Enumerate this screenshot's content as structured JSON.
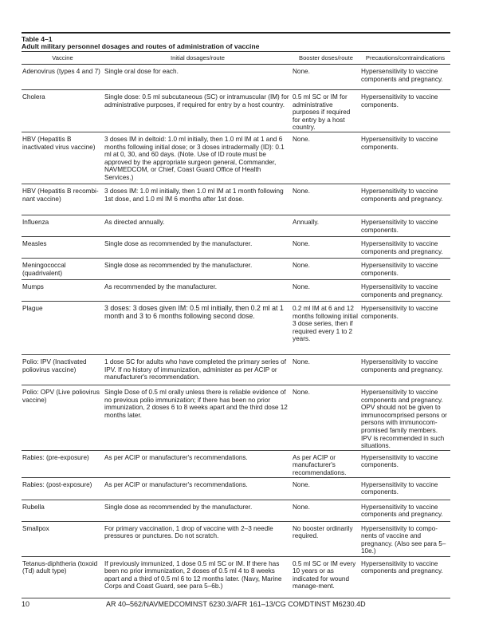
{
  "table": {
    "number": "Table 4–1",
    "title": "Adult military personnel dosages and routes of administration of vaccine",
    "headers": [
      "Vaccine",
      "Initial dosages/route",
      "Booster doses/route",
      "Precautions/contraindications"
    ],
    "rows": [
      [
        "Adenovirus (types 4 and 7)",
        "Single oral dose for each.",
        "None.",
        "Hypersensitivity to vaccine components and pregnancy."
      ],
      [
        "Cholera",
        "Single dose: 0.5 ml subcutaneous (SC) or intramuscular (IM) for administrative purposes, if required for entry by a host country.",
        "0.5 ml SC or IM for administrative purposes if required for entry by a host country.",
        "Hypersensitivity to vaccine components."
      ],
      [
        "HBV (Hepatitis B inactivated virus vaccine)",
        "3 doses IM in deltoid: 1.0 ml initially, then 1.0 ml IM at 1 and 6 months following initial dose; or 3 doses intradermally (ID): 0.1 ml at 0, 30, and 60 days. (Note. Use of ID route must be approved by the appropriate surgeon general, Commander, NAVMEDCOM, or Chief, Coast Guard Office of Health Services.)",
        "None.",
        "Hypersensitivity to vaccine components."
      ],
      [
        "HBV (Hepatitis B recombi-nant vaccine)",
        "3 doses IM: 1.0 ml initially, then 1.0 ml IM at 1 month following 1st dose, and 1.0 ml IM 6 months after 1st dose.",
        "None.",
        "Hypersensitivity to vaccine components and pregnancy."
      ],
      [
        "Influenza",
        "As directed annually.",
        "Annually.",
        "Hypersensitivity to vaccine components."
      ],
      [
        "Measles",
        "Single dose as recommended by the manufacturer.",
        "None.",
        "Hypersensitivity to vaccine components and pregnancy."
      ],
      [
        "Meningococcal (quadrivalent)",
        "Single dose as recommended by the manufacturer.",
        "None.",
        "Hypersensitivity to vaccine components."
      ],
      [
        "Mumps",
        "As recommended by the manufacturer.",
        "None.",
        "Hypersensitivity to vaccine components and pregnancy."
      ],
      [
        "Plague",
        "3 doses: 3 doses given IM: 0.5 ml initially, then 0.2 ml at 1 month and 3 to 6 months following second dose.",
        "0.2 ml IM at 6 and 12 months following initial 3 dose series, then if required every 1 to 2 years.",
        "Hypersensitivity to vaccine components."
      ],
      [
        "Polio: IPV (Inactivated poliovirus vaccine)",
        "1 dose SC for adults who have completed the primary series of IPV. If no history of immunization, administer as per ACIP or manufacturer's recommendation.",
        "None.",
        "Hypersensitivity to vaccine components and pregnancy."
      ],
      [
        "Polio: OPV (Live poliovirus vaccine)",
        "Single Dose of 0.5 ml orally unless there is reliable evidence of no previous polio immunization; if there has been no prior immunization, 2 doses 6 to 8 weeks apart and the third dose 12 months later.",
        "None.",
        "Hypersensitivity to vaccine components and pregnancy. OPV should not be given to immunocomprised persons or persons with immunocom-promised family members. IPV is recommended in such situations."
      ],
      [
        "Rabies: (pre-exposure)",
        "As per ACIP or manufacturer's recommendations.",
        "As per ACIP or manufacturer's recommendations.",
        "Hypersensitivity to vaccine components."
      ],
      [
        "Rabies: (post-exposure)",
        "As per ACIP or manufacturer's recommendations.",
        "None.",
        "Hypersensitivity to vaccine components."
      ],
      [
        "Rubella",
        "Single dose as recommended by the manufacturer.",
        "None.",
        "Hypersensitivity to vaccine components and pregnancy."
      ],
      [
        "Smallpox",
        "For primary vaccination, 1 drop of vaccine with 2–3 needle pressures or punctures. Do not scratch.",
        "No booster ordinarily required.",
        "Hypersensitivity to compo-nents of vaccine and pregnancy. (Also see para 5–10e.)"
      ],
      [
        "Tetanus-diphtheria (toxoid (Td) adult type)",
        "If previously immunized, 1 dose 0.5 ml SC or IM. If there has been no prior immunization, 2 doses of 0.5 ml 4 to 8 weeks apart and a third of 0.5 ml 6 to 12 months later. (Navy, Marine Corps and Coast Guard, see para 5–6b.)",
        "0.5 ml SC or IM every 10 years or as indicated for wound manage-ment.",
        "Hypersensitivity to vaccine components and pregnancy."
      ]
    ]
  },
  "footer": {
    "page_number": "10",
    "reference": "AR 40–562/NAVMEDCOMINST 6230.3/AFR 161–13/CG COMDTINST M6230.4D"
  }
}
